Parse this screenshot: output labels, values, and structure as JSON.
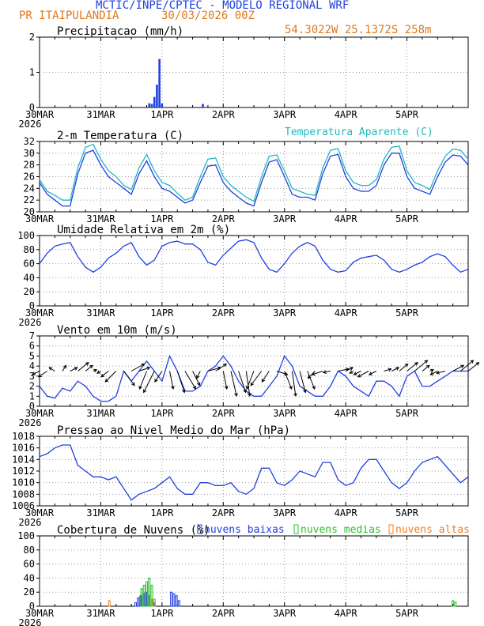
{
  "header": {
    "title": "MCTIC/INPE/CPTEC - MODELO REGIONAL WRF",
    "location": "PR ITAIPULANDIA",
    "run": "30/03/2026 00Z",
    "coords": "54.3022W 25.1372S 258m"
  },
  "colors": {
    "title": "#2040e0",
    "accent": "#e07a20",
    "axis": "#000000",
    "series_blue": "#2040e0",
    "series_cyan": "#20b8c0",
    "series_green": "#30c030",
    "series_orange": "#f08020"
  },
  "x_axis": {
    "tick_labels": [
      "30MAR",
      "31MAR",
      "1APR",
      "2APR",
      "3APR",
      "4APR",
      "5APR"
    ],
    "year_label": "2026",
    "x_hours": [
      0,
      168
    ]
  },
  "chart_data": [
    {
      "type": "bar",
      "title": "Precipitacao (mm/h)",
      "xlabel": "",
      "ylabel": "mm/h",
      "ylim": [
        0,
        2
      ],
      "yticks": [
        "0",
        "1",
        "2"
      ],
      "series": [
        {
          "name": "Precipitacao",
          "hours": [
            43,
            44,
            45,
            46,
            47,
            48,
            64
          ],
          "values": [
            0.12,
            0.1,
            0.3,
            0.65,
            1.38,
            0.12,
            0.1
          ]
        }
      ]
    },
    {
      "type": "line",
      "title": "2-m Temperatura (C)",
      "legend": "Temperatura Aparente (C)",
      "ylim": [
        20,
        32
      ],
      "yticks": [
        "20",
        "22",
        "24",
        "26",
        "28",
        "30",
        "32"
      ],
      "series": [
        {
          "name": "Temperatura",
          "color": "blue",
          "hours": [
            0,
            3,
            6,
            9,
            12,
            15,
            18,
            21,
            24,
            27,
            30,
            33,
            36,
            39,
            42,
            45,
            48,
            51,
            54,
            57,
            60,
            63,
            66,
            69,
            72,
            75,
            78,
            81,
            84,
            87,
            90,
            93,
            96,
            99,
            102,
            105,
            108,
            111,
            114,
            117,
            120,
            123,
            126,
            129,
            132,
            135,
            138,
            141,
            144,
            147,
            150,
            153,
            156,
            159,
            162,
            165,
            168
          ],
          "values": [
            25.0,
            23.0,
            22.0,
            21.0,
            21.0,
            26.5,
            30.0,
            30.5,
            28.0,
            26.0,
            25.0,
            24.0,
            23.0,
            26.5,
            28.7,
            26.0,
            24.0,
            23.5,
            22.5,
            21.5,
            22.0,
            25.0,
            27.8,
            28.0,
            25.0,
            23.5,
            22.5,
            21.5,
            21.0,
            25.0,
            28.5,
            28.9,
            26.0,
            23.0,
            22.5,
            22.5,
            22.0,
            26.5,
            29.5,
            29.8,
            26.0,
            24.0,
            23.5,
            23.5,
            24.5,
            28.0,
            30.0,
            30.0,
            26.0,
            24.0,
            23.5,
            23.0,
            26.0,
            28.5,
            29.7,
            29.5,
            28.0
          ]
        },
        {
          "name": "Temperatura Aparente",
          "color": "cyan",
          "hours": [
            0,
            3,
            6,
            9,
            12,
            15,
            18,
            21,
            24,
            27,
            30,
            33,
            36,
            39,
            42,
            45,
            48,
            51,
            54,
            57,
            60,
            63,
            66,
            69,
            72,
            75,
            78,
            81,
            84,
            87,
            90,
            93,
            96,
            99,
            102,
            105,
            108,
            111,
            114,
            117,
            120,
            123,
            126,
            129,
            132,
            135,
            138,
            141,
            144,
            147,
            150,
            153,
            156,
            159,
            162,
            165,
            168
          ],
          "values": [
            25.5,
            23.5,
            22.8,
            22.0,
            22.0,
            27.5,
            31.0,
            31.5,
            29.0,
            27.0,
            26.0,
            24.5,
            23.8,
            27.5,
            29.8,
            27.0,
            25.0,
            24.5,
            23.2,
            22.0,
            22.5,
            26.0,
            29.0,
            29.2,
            26.0,
            24.5,
            23.5,
            22.5,
            21.8,
            26.0,
            29.5,
            29.7,
            27.0,
            24.0,
            23.5,
            23.0,
            22.8,
            27.5,
            30.5,
            30.8,
            27.0,
            25.0,
            24.5,
            24.5,
            25.5,
            29.0,
            31.0,
            31.2,
            27.0,
            25.0,
            24.5,
            23.8,
            27.0,
            29.5,
            30.7,
            30.5,
            29.0
          ]
        }
      ]
    },
    {
      "type": "line",
      "title": "Umidade Relativa em 2m (%)",
      "ylim": [
        0,
        100
      ],
      "yticks": [
        "0",
        "20",
        "40",
        "60",
        "80",
        "100"
      ],
      "series": [
        {
          "name": "Umidade",
          "hours": [
            0,
            3,
            6,
            9,
            12,
            15,
            18,
            21,
            24,
            27,
            30,
            33,
            36,
            39,
            42,
            45,
            48,
            51,
            54,
            57,
            60,
            63,
            66,
            69,
            72,
            75,
            78,
            81,
            84,
            87,
            90,
            93,
            96,
            99,
            102,
            105,
            108,
            111,
            114,
            117,
            120,
            123,
            126,
            129,
            132,
            135,
            138,
            141,
            144,
            147,
            150,
            153,
            156,
            159,
            162,
            165,
            168
          ],
          "values": [
            60,
            75,
            85,
            88,
            90,
            70,
            55,
            48,
            55,
            68,
            75,
            85,
            90,
            70,
            58,
            65,
            85,
            90,
            92,
            88,
            88,
            80,
            62,
            58,
            72,
            82,
            92,
            94,
            90,
            68,
            52,
            48,
            60,
            75,
            85,
            90,
            85,
            65,
            52,
            48,
            50,
            62,
            68,
            70,
            72,
            65,
            52,
            48,
            52,
            58,
            62,
            70,
            74,
            70,
            58,
            48,
            52
          ]
        }
      ]
    },
    {
      "type": "line",
      "title": "Vento em 10m (m/s)",
      "ylim": [
        0,
        7
      ],
      "yticks": [
        "0",
        "1",
        "2",
        "3",
        "4",
        "5",
        "6",
        "7"
      ],
      "series": [
        {
          "name": "Vento",
          "hours": [
            0,
            3,
            6,
            9,
            12,
            15,
            18,
            21,
            24,
            27,
            30,
            33,
            36,
            39,
            42,
            45,
            48,
            51,
            54,
            57,
            60,
            63,
            66,
            69,
            72,
            75,
            78,
            81,
            84,
            87,
            90,
            93,
            96,
            99,
            102,
            105,
            108,
            111,
            114,
            117,
            120,
            123,
            126,
            129,
            132,
            135,
            138,
            141,
            144,
            147,
            150,
            153,
            156,
            159,
            162,
            165,
            168
          ],
          "values": [
            2.0,
            1.0,
            0.8,
            1.8,
            1.5,
            2.5,
            2.0,
            1.0,
            0.5,
            0.5,
            1.0,
            3.5,
            2.5,
            3.5,
            4.5,
            3.5,
            2.5,
            5.0,
            3.5,
            1.5,
            1.5,
            2.0,
            3.5,
            4.0,
            5.0,
            4.0,
            2.5,
            1.5,
            1.0,
            1.0,
            2.0,
            3.0,
            5.0,
            4.0,
            2.0,
            1.5,
            1.0,
            1.0,
            2.0,
            3.5,
            3.0,
            2.0,
            1.5,
            1.0,
            2.5,
            2.5,
            2.0,
            1.0,
            3.0,
            3.5,
            2.0,
            2.0,
            2.5,
            3.0,
            3.5,
            3.5,
            3.5
          ]
        }
      ],
      "wind_vectors": {
        "hours": [
          0,
          3,
          6,
          9,
          12,
          15,
          18,
          21,
          24,
          27,
          30,
          33,
          36,
          39,
          42,
          45,
          48,
          51,
          54,
          57,
          60,
          63,
          66,
          69,
          72,
          75,
          78,
          81,
          84,
          87,
          90,
          93,
          96,
          99,
          102,
          105,
          108,
          111,
          114,
          117,
          120,
          123,
          126,
          129,
          132,
          135,
          138,
          141,
          144,
          147,
          150,
          153,
          156,
          159,
          162,
          165,
          168
        ],
        "u": [
          -1.0,
          -1.2,
          -0.8,
          0.5,
          1.0,
          1.5,
          1.0,
          0.5,
          -0.5,
          -1.0,
          -1.5,
          1.5,
          1.8,
          1.5,
          -1.0,
          -1.5,
          -1.0,
          0.5,
          1.0,
          1.5,
          1.0,
          -0.5,
          1.8,
          1.5,
          0.5,
          0.8,
          1.0,
          0.5,
          -1.0,
          -1.5,
          -1.0,
          1.5,
          1.0,
          0.5,
          0.8,
          1.0,
          -1.0,
          -1.5,
          -1.0,
          1.5,
          1.0,
          -0.5,
          -1.0,
          -1.5,
          -1.0,
          1.0,
          1.0,
          1.2,
          1.5,
          1.8,
          1.0,
          0.5,
          -1.0,
          -1.2,
          1.5,
          1.8,
          1.5
        ],
        "v": [
          -0.5,
          -0.8,
          0.5,
          0.8,
          0.5,
          1.2,
          0.8,
          0.2,
          -0.3,
          -0.8,
          -1.5,
          -2.0,
          1.0,
          0.5,
          -2.5,
          -3.0,
          -1.5,
          -2.5,
          -3.0,
          -2.5,
          -2.0,
          -1.0,
          0.5,
          1.0,
          -2.5,
          -3.5,
          -3.0,
          -3.5,
          -2.5,
          -2.0,
          -1.5,
          -0.5,
          -2.5,
          -3.5,
          -3.0,
          -2.5,
          -1.0,
          -0.5,
          -0.2,
          0.3,
          0.5,
          -0.3,
          -0.5,
          -0.8,
          -0.5,
          0.3,
          0.5,
          1.0,
          1.2,
          1.5,
          0.8,
          0.2,
          -0.5,
          -0.3,
          0.8,
          1.5,
          1.2
        ]
      }
    },
    {
      "type": "line",
      "title": "Pressao ao Nivel Medio do Mar (hPa)",
      "ylim": [
        1006,
        1018
      ],
      "yticks": [
        "1006",
        "1008",
        "1010",
        "1012",
        "1014",
        "1016",
        "1018"
      ],
      "series": [
        {
          "name": "Pressao",
          "hours": [
            0,
            3,
            6,
            9,
            12,
            15,
            18,
            21,
            24,
            27,
            30,
            33,
            36,
            39,
            42,
            45,
            48,
            51,
            54,
            57,
            60,
            63,
            66,
            69,
            72,
            75,
            78,
            81,
            84,
            87,
            90,
            93,
            96,
            99,
            102,
            105,
            108,
            111,
            114,
            117,
            120,
            123,
            126,
            129,
            132,
            135,
            138,
            141,
            144,
            147,
            150,
            153,
            156,
            159,
            162,
            165,
            168
          ],
          "values": [
            1014.5,
            1015.0,
            1016.0,
            1016.5,
            1016.5,
            1013.0,
            1012.0,
            1011.0,
            1011.0,
            1010.5,
            1011.0,
            1009.0,
            1007.0,
            1008.0,
            1008.5,
            1009.0,
            1010.0,
            1011.0,
            1009.0,
            1008.0,
            1008.0,
            1010.0,
            1010.0,
            1009.5,
            1009.5,
            1010.0,
            1008.5,
            1008.0,
            1009.0,
            1012.5,
            1012.5,
            1010.0,
            1009.5,
            1010.5,
            1012.0,
            1011.5,
            1011.0,
            1013.5,
            1013.5,
            1010.5,
            1009.5,
            1010.0,
            1012.5,
            1014.0,
            1014.0,
            1012.0,
            1010.0,
            1009.0,
            1010.0,
            1012.0,
            1013.5,
            1014.0,
            1014.5,
            1013.0,
            1011.5,
            1010.0,
            1011.0
          ]
        }
      ]
    },
    {
      "type": "bar",
      "title": "Cobertura de Nuvens (%)",
      "ylim": [
        0,
        100
      ],
      "yticks": [
        "0",
        "20",
        "40",
        "60",
        "80",
        "100"
      ],
      "legend": [
        "nuvens baixas",
        "nuvens medias",
        "nuvens altas"
      ],
      "series": [
        {
          "name": "nuvens baixas",
          "color": "blue",
          "hours": [
            38,
            39,
            40,
            41,
            42,
            43,
            45,
            52,
            53,
            54,
            55
          ],
          "values": [
            5,
            12,
            15,
            18,
            20,
            15,
            5,
            20,
            18,
            15,
            8
          ]
        },
        {
          "name": "nuvens medias",
          "color": "green",
          "hours": [
            40,
            41,
            42,
            43,
            44,
            45,
            162,
            163
          ],
          "values": [
            25,
            30,
            35,
            40,
            30,
            10,
            8,
            6
          ]
        },
        {
          "name": "nuvens altas",
          "color": "orange",
          "hours": [
            27,
            44
          ],
          "values": [
            8,
            10
          ]
        }
      ]
    }
  ]
}
